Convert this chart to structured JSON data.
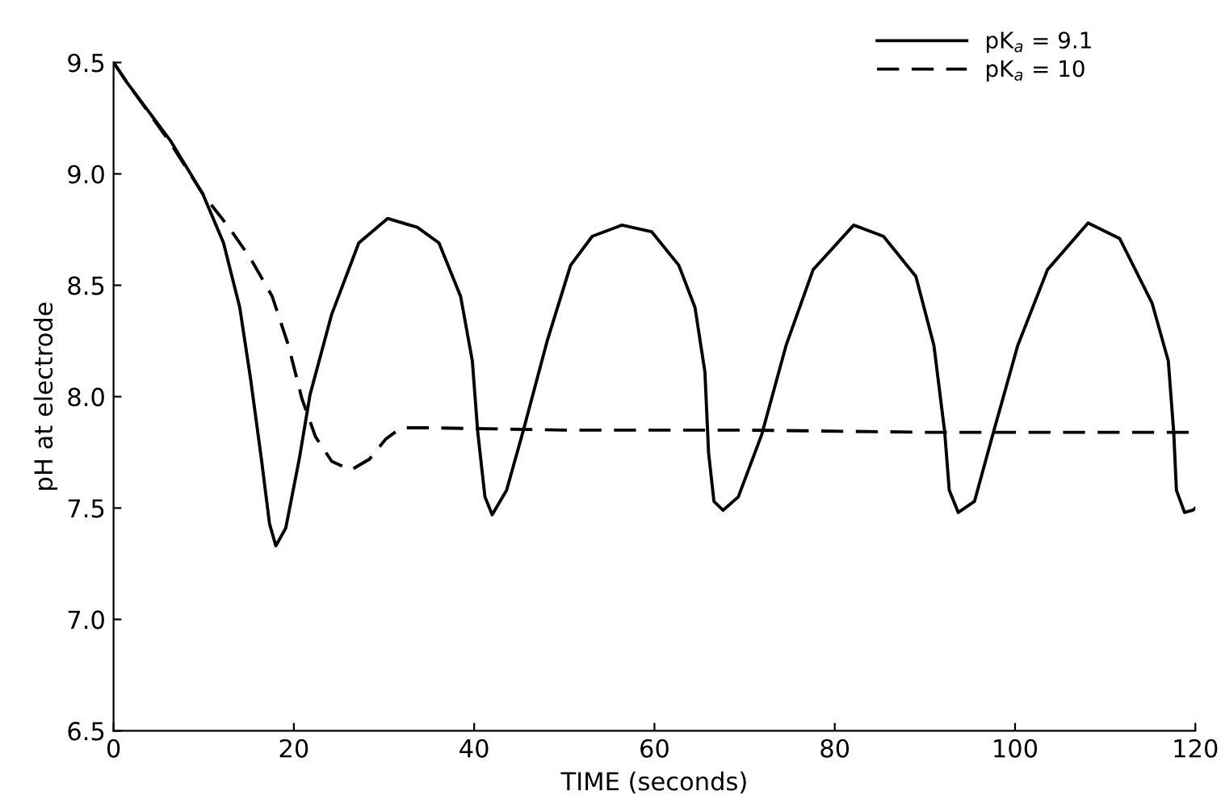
{
  "chart_data": {
    "type": "line",
    "xlabel": "TIME (seconds)",
    "ylabel": "pH at electrode",
    "xlim": [
      0,
      120
    ],
    "xticks": [
      0,
      20,
      40,
      60,
      80,
      100,
      120
    ],
    "ylim": [
      6.5,
      9.5
    ],
    "yticks": [
      {
        "value": 6.5,
        "label": "6.5"
      },
      {
        "value": 7.0,
        "label": "7.0"
      },
      {
        "value": 7.5,
        "label": "7.5"
      },
      {
        "value": 8.0,
        "label": "8.0"
      },
      {
        "value": 8.5,
        "label": "8.5"
      },
      {
        "value": 9.0,
        "label": "9.0"
      },
      {
        "value": 9.5,
        "label": "9.5"
      }
    ],
    "grid": false,
    "legend": "top right",
    "marker": "none",
    "series": [
      {
        "name": "pK$_{a}$ = 9.1",
        "color": "#000000",
        "line_style": "solid",
        "x": [
          0,
          1.5,
          6.3,
          9.9,
          12.2,
          14.0,
          15.2,
          16.4,
          17.3,
          18.0,
          19.1,
          20.6,
          21.8,
          24.2,
          27.2,
          30.4,
          33.7,
          36.1,
          38.5,
          39.8,
          40.4,
          41.2,
          42.0,
          43.6,
          45.4,
          48.1,
          50.7,
          53.1,
          56.4,
          59.7,
          62.7,
          64.5,
          65.6,
          66.0,
          66.6,
          67.6,
          69.3,
          71.9,
          74.6,
          77.6,
          82.1,
          85.4,
          89.0,
          91.0,
          92.2,
          92.7,
          93.7,
          95.5,
          97.6,
          100.3,
          103.6,
          108.1,
          111.6,
          115.2,
          117.0,
          117.6,
          117.9,
          118.8,
          119.7,
          120
        ],
        "values": [
          9.5,
          9.41,
          9.15,
          8.91,
          8.69,
          8.4,
          8.08,
          7.72,
          7.43,
          7.33,
          7.41,
          7.72,
          8.01,
          8.37,
          8.69,
          8.8,
          8.76,
          8.69,
          8.45,
          8.16,
          7.84,
          7.55,
          7.47,
          7.58,
          7.84,
          8.25,
          8.59,
          8.72,
          8.77,
          8.74,
          8.59,
          8.4,
          8.11,
          7.75,
          7.53,
          7.49,
          7.55,
          7.83,
          8.23,
          8.57,
          8.77,
          8.72,
          8.54,
          8.23,
          7.84,
          7.58,
          7.48,
          7.53,
          7.84,
          8.23,
          8.57,
          8.78,
          8.71,
          8.42,
          8.16,
          7.84,
          7.58,
          7.48,
          7.49,
          7.5
        ]
      },
      {
        "name": "pK$_{a}$ = 10",
        "color": "#000000",
        "line_style": "dashed",
        "x": [
          0,
          1.5,
          6.3,
          9.9,
          12.8,
          15.2,
          17.6,
          19.4,
          20.9,
          22.4,
          24.2,
          26.3,
          28.4,
          30.2,
          31.9,
          35.5,
          50,
          70,
          90,
          110,
          120
        ],
        "values": [
          9.5,
          9.41,
          9.14,
          8.91,
          8.76,
          8.62,
          8.45,
          8.23,
          7.99,
          7.82,
          7.71,
          7.67,
          7.72,
          7.81,
          7.86,
          7.86,
          7.85,
          7.85,
          7.84,
          7.84,
          7.84
        ]
      }
    ]
  }
}
